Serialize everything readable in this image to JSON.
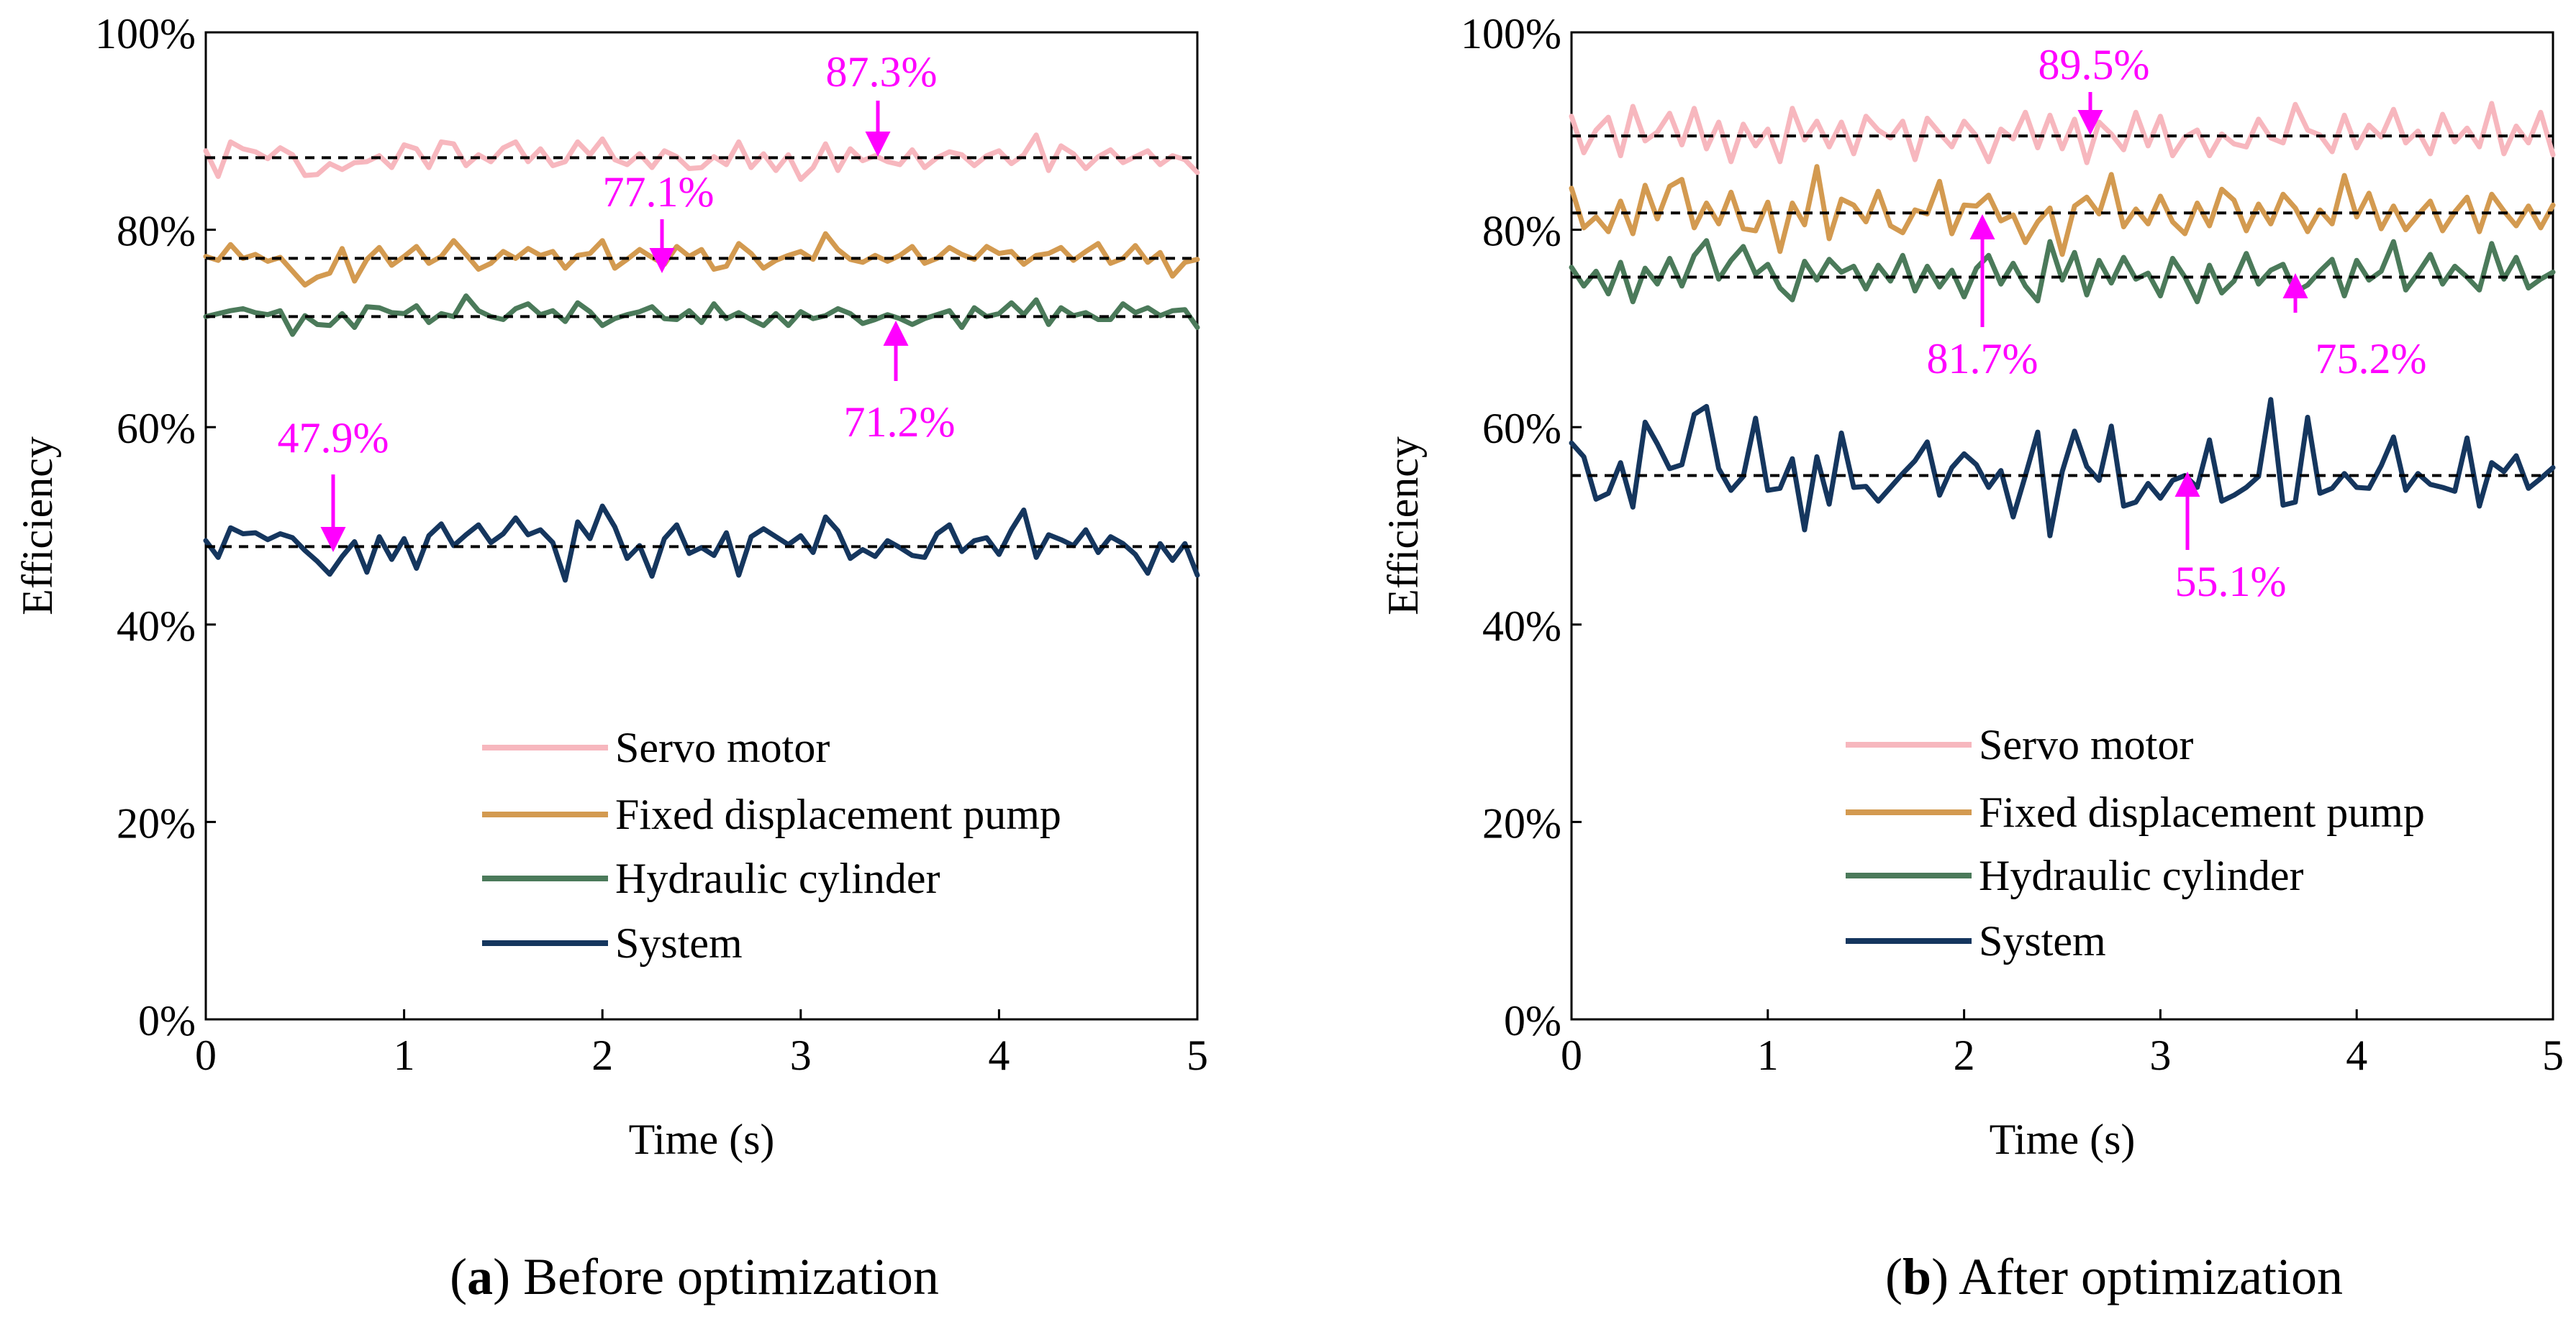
{
  "colors": {
    "servo": "#F7B7BE",
    "pump": "#D39A50",
    "cylinder": "#4B7A5A",
    "system": "#15365E",
    "annotation": "#FF00FF",
    "mean_line": "#000000"
  },
  "chart_data": [
    {
      "type": "line",
      "panel_label": "a",
      "caption": " Before optimization",
      "xlabel": "Time (s)",
      "ylabel": "Efficiency",
      "xlim": [
        0,
        5
      ],
      "ylim": [
        0,
        100
      ],
      "xticks": [
        "0",
        "1",
        "2",
        "3",
        "4",
        "5"
      ],
      "yticks": [
        "0%",
        "20%",
        "40%",
        "60%",
        "80%",
        "100%"
      ],
      "x_step": 0.0625,
      "legend": [
        "Servo motor",
        "Fixed displacement pump",
        "Hydraulic cylinder",
        "System"
      ],
      "series": [
        {
          "name": "Servo motor",
          "color_key": "servo",
          "mean": 87.3,
          "values": [
            88.0,
            85.4,
            88.9,
            88.2,
            87.9,
            87.2,
            88.3,
            87.6,
            85.5,
            85.6,
            86.7,
            86.1,
            86.8,
            86.9,
            87.5,
            86.3,
            88.6,
            88.2,
            86.3,
            88.9,
            88.7,
            86.5,
            87.6,
            86.9,
            88.3,
            88.9,
            86.9,
            88.2,
            86.5,
            86.9,
            88.9,
            87.6,
            89.2,
            87.1,
            86.6,
            87.7,
            86.3,
            88.0,
            87.4,
            86.2,
            86.3,
            87.4,
            86.6,
            88.9,
            86.3,
            87.7,
            86.0,
            87.6,
            85.1,
            86.3,
            88.7,
            86.0,
            88.2,
            87.0,
            87.5,
            86.9,
            86.6,
            88.1,
            86.3,
            87.3,
            87.9,
            87.6,
            86.5,
            87.5,
            88.0,
            86.7,
            87.6,
            89.6,
            86.0,
            88.5,
            87.7,
            86.2,
            87.4,
            88.1,
            86.8,
            87.4,
            88.0,
            86.6,
            87.5,
            87.1,
            85.8
          ]
        },
        {
          "name": "Fixed displacement pump",
          "color_key": "pump",
          "mean": 77.1,
          "values": [
            77.3,
            76.9,
            78.5,
            77.1,
            77.5,
            76.8,
            77.2,
            75.8,
            74.4,
            75.2,
            75.6,
            78.1,
            74.8,
            77.0,
            78.2,
            76.4,
            77.3,
            78.3,
            76.6,
            77.3,
            78.9,
            77.5,
            76.0,
            76.6,
            77.8,
            77.1,
            78.1,
            77.4,
            77.8,
            76.1,
            77.4,
            77.6,
            78.9,
            76.1,
            77.0,
            78.0,
            77.2,
            76.5,
            78.3,
            77.3,
            78.0,
            76.0,
            76.3,
            78.6,
            77.6,
            76.1,
            76.9,
            77.4,
            77.8,
            77.0,
            79.6,
            78.0,
            77.0,
            76.7,
            77.4,
            76.8,
            77.4,
            78.3,
            76.6,
            77.1,
            78.2,
            77.5,
            77.0,
            78.3,
            77.6,
            77.8,
            76.5,
            77.4,
            77.6,
            78.2,
            76.9,
            77.8,
            78.6,
            76.6,
            77.1,
            78.4,
            76.7,
            77.7,
            75.3,
            76.7,
            77.0
          ]
        },
        {
          "name": "Hydraulic cylinder",
          "color_key": "cylinder",
          "mean": 71.2,
          "values": [
            71.2,
            71.5,
            71.8,
            72.0,
            71.6,
            71.4,
            71.8,
            69.4,
            71.3,
            70.4,
            70.3,
            71.5,
            70.1,
            72.2,
            72.1,
            71.6,
            71.5,
            72.3,
            70.6,
            71.5,
            71.2,
            73.3,
            71.8,
            71.2,
            70.9,
            72.0,
            72.5,
            71.4,
            71.8,
            70.7,
            72.6,
            71.7,
            70.3,
            71.0,
            71.4,
            71.7,
            72.2,
            71.0,
            70.9,
            71.8,
            70.6,
            72.5,
            71.0,
            71.6,
            70.9,
            70.3,
            71.5,
            70.3,
            71.7,
            71.0,
            71.3,
            72.0,
            71.5,
            70.5,
            70.9,
            71.4,
            71.0,
            70.4,
            71.0,
            71.4,
            71.8,
            70.1,
            72.1,
            71.2,
            71.5,
            72.6,
            71.4,
            72.9,
            70.4,
            72.1,
            71.3,
            71.6,
            70.9,
            70.9,
            72.5,
            71.6,
            72.1,
            71.3,
            71.8,
            71.9,
            70.1
          ]
        },
        {
          "name": "System",
          "color_key": "system",
          "mean": 47.9,
          "values": [
            48.5,
            46.8,
            49.8,
            49.2,
            49.3,
            48.6,
            49.2,
            48.8,
            47.5,
            46.4,
            45.1,
            46.9,
            48.4,
            45.3,
            48.9,
            46.6,
            48.7,
            45.7,
            49.0,
            50.2,
            48.0,
            49.1,
            50.1,
            48.3,
            49.2,
            50.8,
            49.1,
            49.6,
            48.3,
            44.5,
            50.4,
            48.7,
            52.0,
            49.9,
            46.7,
            48.0,
            44.9,
            48.7,
            50.1,
            47.2,
            47.8,
            47.0,
            49.3,
            45.0,
            48.9,
            49.7,
            48.9,
            48.1,
            49.0,
            47.3,
            50.9,
            49.5,
            46.7,
            47.6,
            46.9,
            48.5,
            47.8,
            47.0,
            46.8,
            49.2,
            50.1,
            47.4,
            48.5,
            48.8,
            47.1,
            49.6,
            51.6,
            46.8,
            49.1,
            48.6,
            48.0,
            49.6,
            47.3,
            48.9,
            48.2,
            47.1,
            45.2,
            48.2,
            46.5,
            48.2,
            45.0
          ]
        }
      ],
      "annotations": [
        {
          "text": "87.3%",
          "series": "Servo motor"
        },
        {
          "text": "77.1%",
          "series": "Fixed displacement pump"
        },
        {
          "text": "71.2%",
          "series": "Hydraulic cylinder"
        },
        {
          "text": "47.9%",
          "series": "System"
        }
      ]
    },
    {
      "type": "line",
      "panel_label": "b",
      "caption": " After optimization",
      "xlabel": "Time (s)",
      "ylabel": "Efficiency",
      "xlim": [
        0,
        5
      ],
      "ylim": [
        0,
        100
      ],
      "xticks": [
        "0",
        "1",
        "2",
        "3",
        "4",
        "5"
      ],
      "yticks": [
        "0%",
        "20%",
        "40%",
        "60%",
        "80%",
        "100%"
      ],
      "x_step": 0.0625,
      "legend": [
        "Servo motor",
        "Fixed displacement pump",
        "Hydraulic cylinder",
        "System"
      ],
      "series": [
        {
          "name": "Servo motor",
          "color_key": "servo",
          "mean": 89.5,
          "values": [
            91.5,
            87.8,
            90.1,
            91.4,
            87.5,
            92.5,
            89.0,
            89.9,
            91.8,
            88.6,
            92.3,
            88.2,
            90.9,
            86.9,
            90.7,
            88.5,
            90.2,
            86.9,
            92.3,
            89.1,
            91.0,
            88.4,
            90.9,
            87.7,
            91.5,
            90.1,
            89.3,
            91.0,
            87.1,
            91.3,
            89.8,
            88.4,
            91.0,
            89.5,
            86.9,
            90.2,
            89.2,
            91.9,
            88.3,
            91.6,
            88.2,
            91.2,
            86.8,
            90.9,
            89.7,
            88.1,
            91.9,
            88.5,
            91.5,
            87.5,
            89.4,
            90.1,
            87.5,
            89.7,
            88.7,
            88.4,
            91.2,
            89.3,
            88.8,
            92.7,
            90.1,
            89.6,
            87.9,
            91.6,
            88.3,
            90.6,
            89.4,
            92.2,
            88.8,
            90.0,
            87.7,
            91.7,
            88.9,
            90.3,
            88.4,
            92.8,
            87.7,
            90.5,
            88.8,
            91.9,
            87.6
          ]
        },
        {
          "name": "Fixed displacement pump",
          "color_key": "pump",
          "mean": 81.7,
          "values": [
            84.2,
            80.2,
            81.3,
            79.8,
            82.9,
            79.6,
            84.5,
            81.1,
            84.4,
            85.1,
            80.2,
            82.7,
            80.6,
            83.8,
            80.1,
            79.9,
            82.8,
            77.8,
            82.7,
            80.5,
            86.4,
            79.1,
            83.1,
            82.5,
            80.8,
            83.9,
            80.4,
            79.7,
            82.0,
            81.6,
            84.9,
            79.6,
            82.5,
            82.4,
            83.5,
            80.9,
            81.5,
            78.7,
            80.8,
            82.2,
            77.5,
            82.4,
            83.3,
            81.6,
            85.6,
            80.3,
            82.1,
            80.6,
            83.4,
            80.8,
            79.6,
            82.7,
            80.4,
            84.1,
            83.0,
            79.9,
            82.6,
            80.6,
            83.6,
            82.2,
            79.8,
            82.0,
            80.6,
            85.5,
            81.3,
            83.7,
            80.1,
            82.4,
            80.0,
            81.5,
            82.9,
            79.9,
            81.8,
            83.3,
            79.8,
            83.6,
            81.9,
            80.4,
            82.4,
            80.2,
            82.5
          ]
        },
        {
          "name": "Hydraulic cylinder",
          "color_key": "cylinder",
          "mean": 75.2,
          "values": [
            76.2,
            74.3,
            75.8,
            73.5,
            76.7,
            72.7,
            76.1,
            74.5,
            77.1,
            74.3,
            77.4,
            78.9,
            75.0,
            76.9,
            78.3,
            75.5,
            76.5,
            74.1,
            72.9,
            76.8,
            74.9,
            77.0,
            75.7,
            76.3,
            74.0,
            76.4,
            74.8,
            77.4,
            73.8,
            76.3,
            74.2,
            75.9,
            73.2,
            76.1,
            77.4,
            74.5,
            76.6,
            74.3,
            72.8,
            78.8,
            74.9,
            77.7,
            73.4,
            76.9,
            74.6,
            77.2,
            75.0,
            75.6,
            73.3,
            77.1,
            75.2,
            72.7,
            76.4,
            73.6,
            74.8,
            77.6,
            74.5,
            75.9,
            76.5,
            73.7,
            74.4,
            75.8,
            77.0,
            73.3,
            76.9,
            74.9,
            75.8,
            78.8,
            73.9,
            75.6,
            77.5,
            74.5,
            76.3,
            75.2,
            73.9,
            78.6,
            75.0,
            77.2,
            74.1,
            75.0,
            75.7
          ]
        },
        {
          "name": "System",
          "color_key": "system",
          "mean": 55.1,
          "values": [
            58.4,
            57.0,
            52.7,
            53.3,
            56.4,
            51.9,
            60.5,
            58.3,
            55.8,
            56.2,
            61.3,
            62.1,
            55.8,
            53.6,
            55.0,
            60.9,
            53.6,
            53.8,
            56.8,
            49.6,
            57.0,
            52.2,
            59.4,
            53.9,
            54.0,
            52.5,
            53.9,
            55.3,
            56.6,
            58.5,
            53.1,
            55.9,
            57.3,
            56.2,
            53.9,
            55.6,
            50.9,
            55.1,
            59.5,
            49.0,
            55.5,
            59.6,
            56.0,
            54.6,
            60.1,
            52.0,
            52.4,
            54.3,
            52.8,
            54.6,
            55.1,
            53.9,
            58.7,
            52.5,
            53.1,
            53.9,
            55.0,
            62.8,
            52.1,
            52.4,
            61.0,
            53.3,
            53.8,
            55.3,
            53.9,
            53.8,
            56.1,
            59.0,
            53.6,
            55.3,
            54.2,
            53.9,
            53.5,
            58.9,
            52.0,
            56.4,
            55.5,
            57.1,
            53.8,
            54.8,
            55.9
          ]
        }
      ],
      "annotations": [
        {
          "text": "89.5%",
          "series": "Servo motor"
        },
        {
          "text": "81.7%",
          "series": "Fixed displacement pump"
        },
        {
          "text": "75.2%",
          "series": "Hydraulic cylinder"
        },
        {
          "text": "55.1%",
          "series": "System"
        }
      ]
    }
  ]
}
